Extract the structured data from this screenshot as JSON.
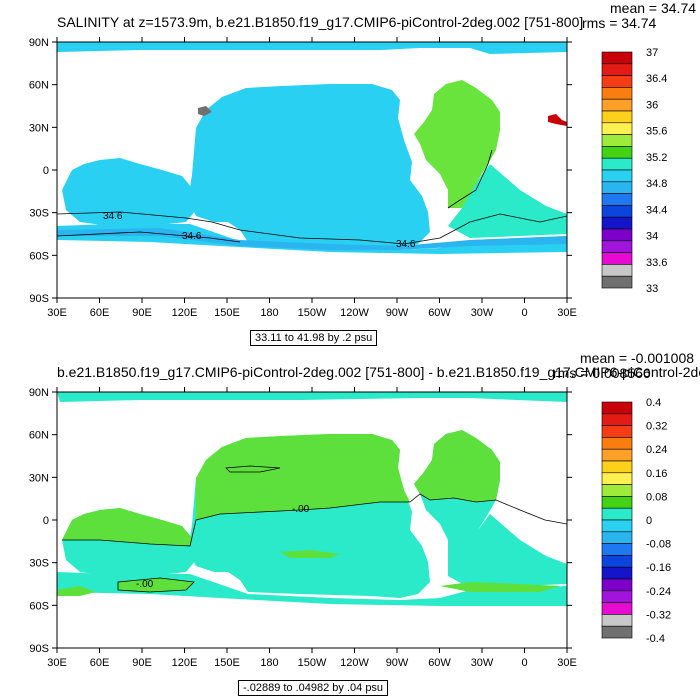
{
  "colors": {
    "ocean_top": "#2ad0f2",
    "atlantic_top": "#69e43c",
    "atlantic_south_top": "#2aeac9",
    "antarctic_band_top": "#2ab4f0",
    "ocean_bottom": "#2aeac9",
    "positive_bottom": "#5ee03c",
    "land": "#ffffff",
    "contour_line": "#000000"
  },
  "top": {
    "title": "SALINITY at z=1573.9m, b.e21.B1850.f19_g17.CMIP6-piControl-2deg.002 [751-800]",
    "mean": "mean = 34.74",
    "rms": "rms = 34.74",
    "contour_info": "33.11 to 41.98 by .2 psu",
    "contour_labels": [
      "34.6",
      "34.6",
      "34.6"
    ],
    "colorbar": {
      "labels": [
        "37",
        "36.4",
        "36",
        "35.6",
        "35.2",
        "34.8",
        "34.4",
        "34",
        "33.6",
        "33"
      ],
      "colors": [
        "#c8000a",
        "#e31b14",
        "#f53c14",
        "#fa7d0f",
        "#fca02a",
        "#fcd01b",
        "#fef050",
        "#a0ea3c",
        "#44d214",
        "#2aeac9",
        "#2ad0f2",
        "#2ab4f0",
        "#1e78f0",
        "#0a46dc",
        "#1414c8",
        "#7d00c8",
        "#a014dc",
        "#e60ad2",
        "#c8c8c8",
        "#707070"
      ]
    }
  },
  "bottom": {
    "title": "b.e21.B1850.f19_g17.CMIP6-piControl-2deg.002 [751-800] - b.e21.B1850.f19_g17.CMIP6-piControl-2de",
    "mean": "mean = -0.001008",
    "rms": "rms = 0.008566",
    "contour_info": "-.02889 to .04982 by .04 psu",
    "contour_labels": [
      "-.00",
      "-.00"
    ],
    "colorbar": {
      "labels": [
        "0.4",
        "0.32",
        "0.24",
        "0.16",
        "0.08",
        "0",
        "-0.08",
        "-0.16",
        "-0.24",
        "-0.32",
        "-0.4"
      ],
      "colors": [
        "#c8000a",
        "#e31b14",
        "#f53c14",
        "#fa7d0f",
        "#fca02a",
        "#fcd01b",
        "#fef050",
        "#a0ea3c",
        "#44d214",
        "#2aeac9",
        "#2ad0f2",
        "#2ab4f0",
        "#1e78f0",
        "#0a46dc",
        "#1414c8",
        "#7d00c8",
        "#a014dc",
        "#e60ad2",
        "#c8c8c8",
        "#707070"
      ]
    }
  },
  "axes": {
    "lat_ticks": [
      "90N",
      "60N",
      "30N",
      "0",
      "30S",
      "60S",
      "90S"
    ],
    "lon_ticks": [
      "30E",
      "60E",
      "90E",
      "120E",
      "150E",
      "180",
      "150W",
      "120W",
      "90W",
      "60W",
      "30W",
      "0",
      "30E"
    ]
  }
}
